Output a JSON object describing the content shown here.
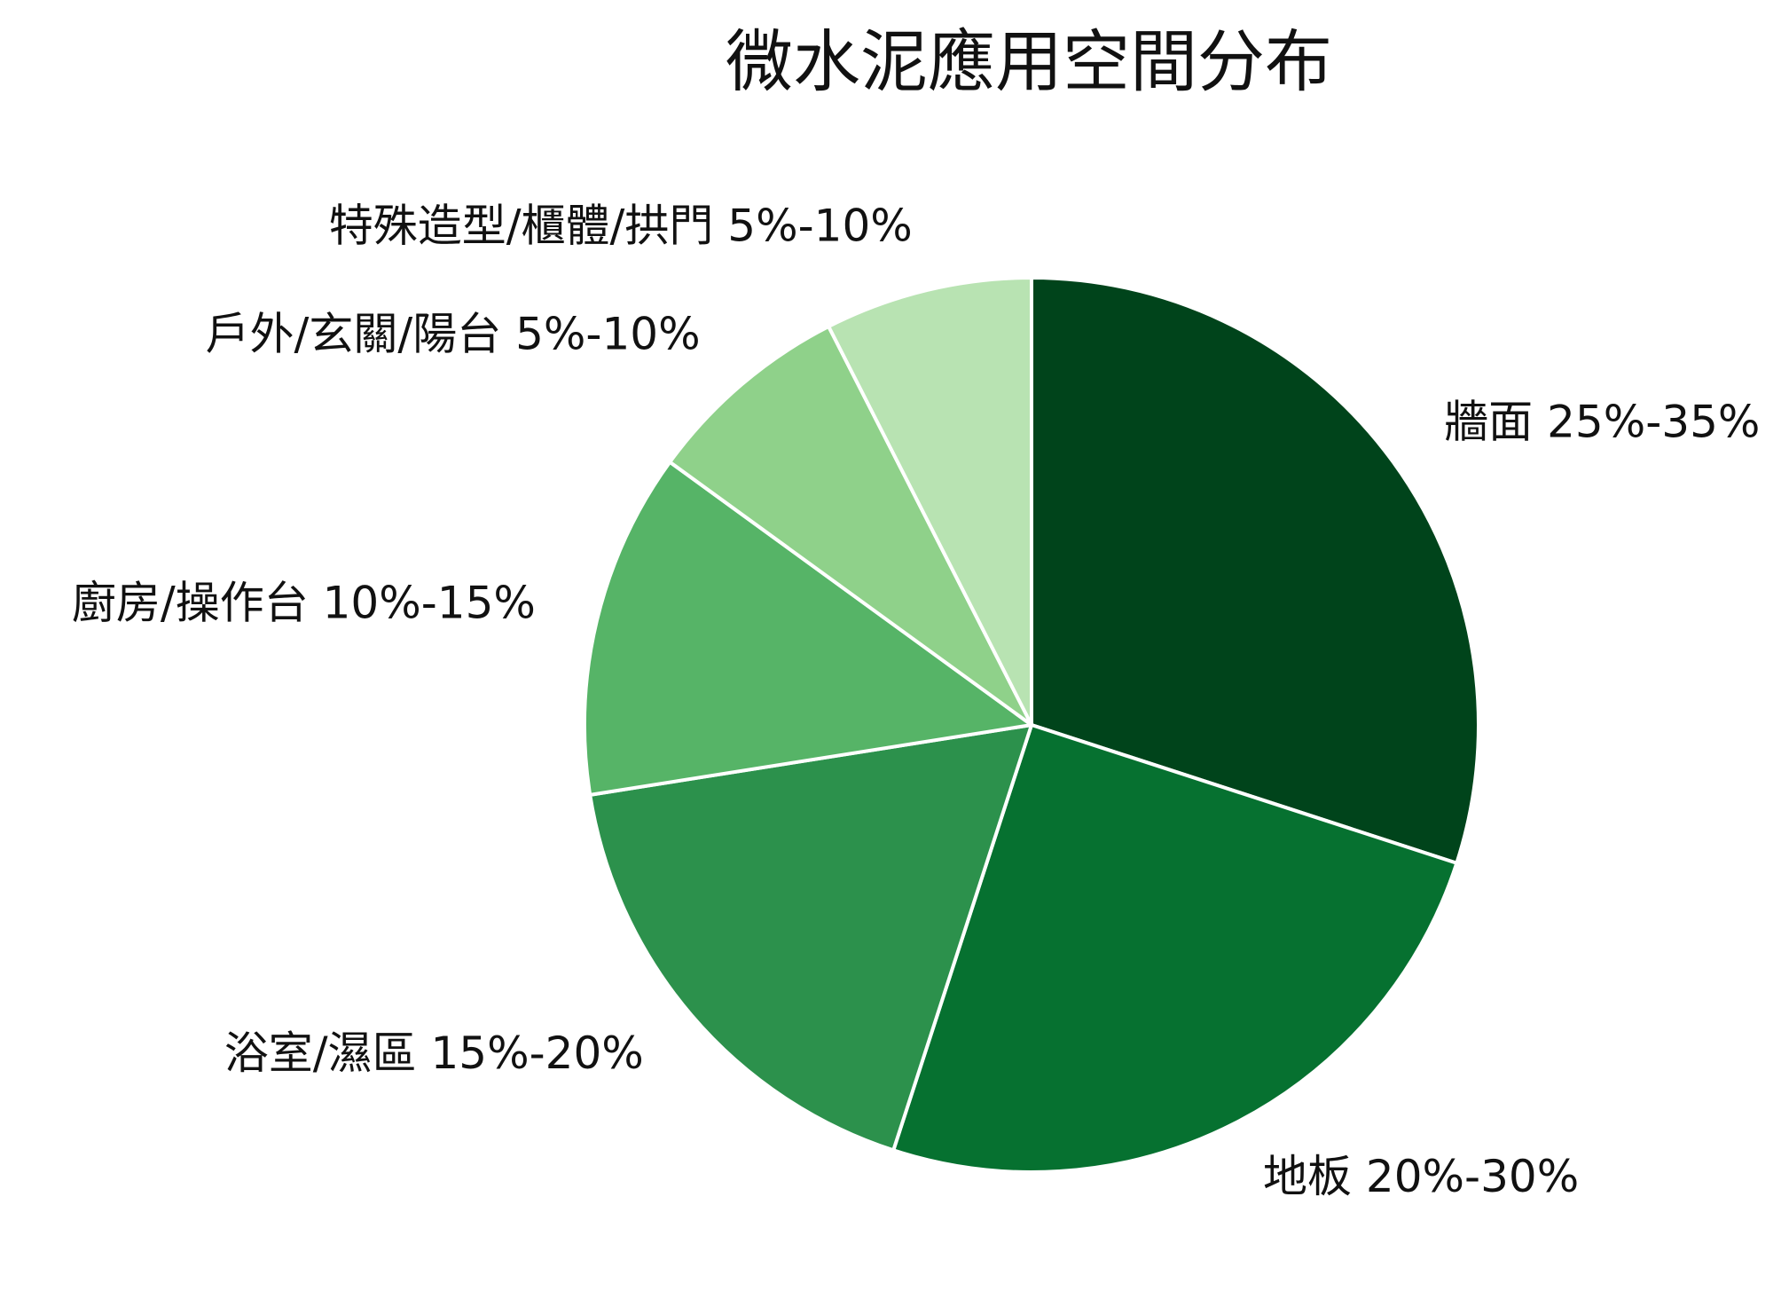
{
  "chart_data": {
    "type": "pie",
    "title": "微水泥應用空間分布",
    "start_angle_deg": 0,
    "direction": "clockwise",
    "slices": [
      {
        "label": "牆面 25%-35%",
        "value": 30,
        "color": "#00441b"
      },
      {
        "label": "地板 20%-30%",
        "value": 25,
        "color": "#067130"
      },
      {
        "label": "浴室/濕區 15%-20%",
        "value": 17.5,
        "color": "#2c914c"
      },
      {
        "label": "廚房/操作台 10%-15%",
        "value": 12.5,
        "color": "#56b467"
      },
      {
        "label": "戶外/玄關/陽台 5%-10%",
        "value": 7.5,
        "color": "#8fd18a"
      },
      {
        "label": "特殊造型/櫃體/拱門 5%-10%",
        "value": 7.5,
        "color": "#b8e3b2"
      }
    ],
    "slice_border_color": "#ffffff"
  }
}
